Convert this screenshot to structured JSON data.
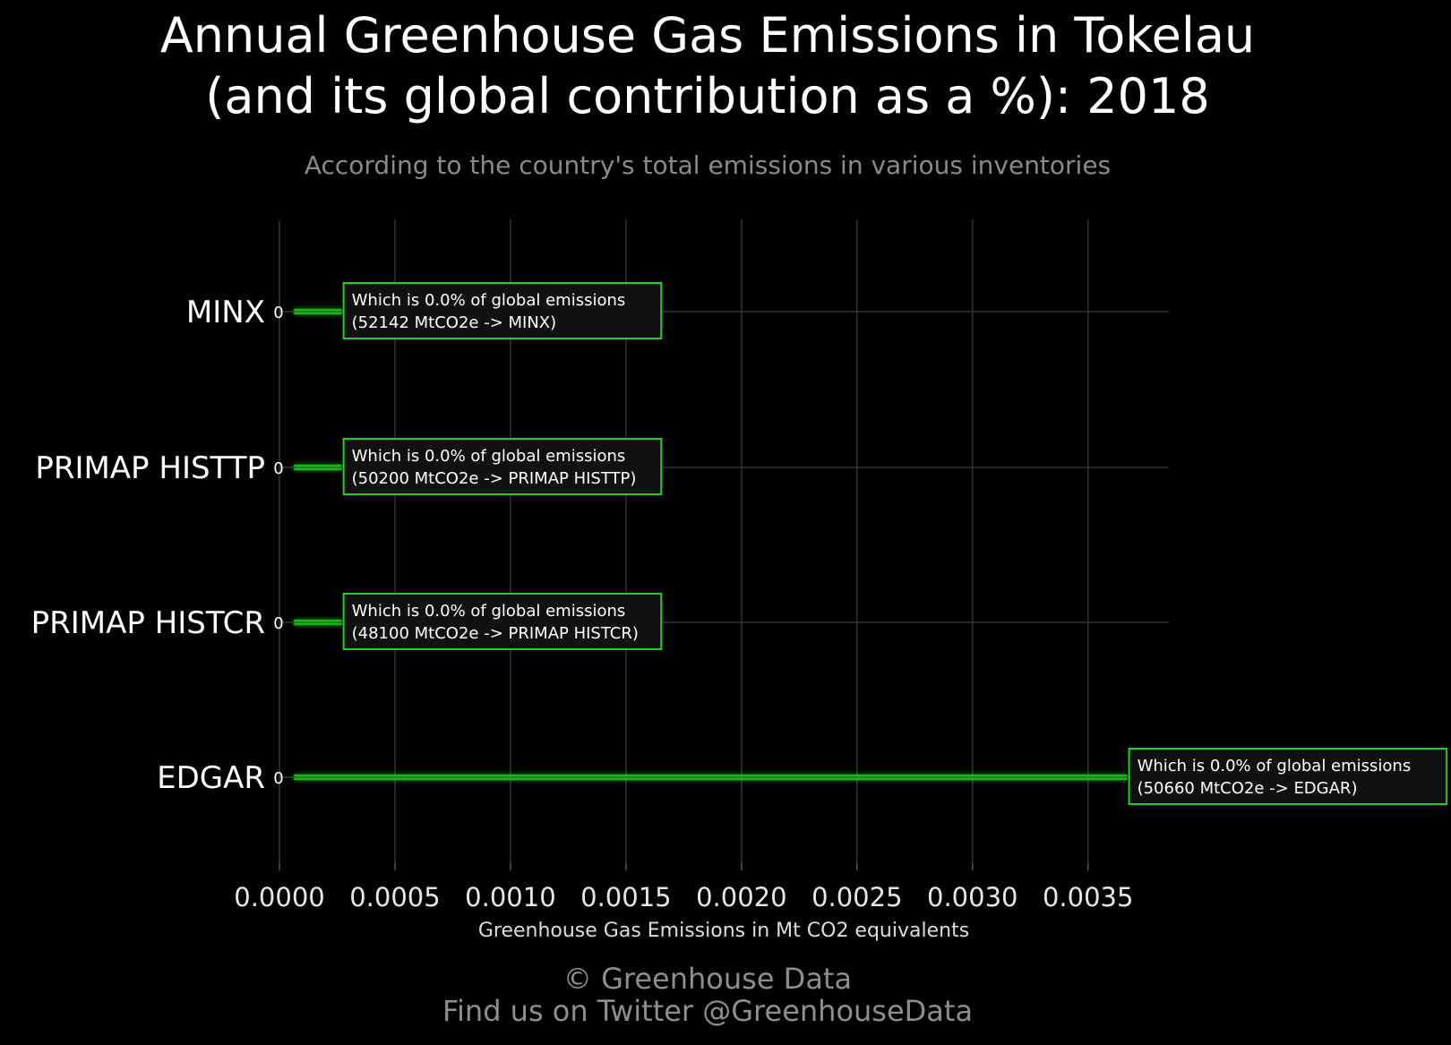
{
  "title_line1": "Annual Greenhouse Gas Emissions in Tokelau",
  "title_line2": "(and its global contribution as a %): 2018",
  "subtitle": "According to the country's total emissions in various inventories",
  "footer_line1": "© Greenhouse Data",
  "footer_line2": "Find us on Twitter @GreenhouseData",
  "colors": {
    "background": "#000000",
    "bar": "#1fd11f",
    "grid": "#333333",
    "label_box_bg": "#111111"
  },
  "chart_data": {
    "type": "bar",
    "orientation": "horizontal",
    "categories": [
      "MINX",
      "PRIMAP HISTTP",
      "PRIMAP HISTCR",
      "EDGAR"
    ],
    "values": [
      0.00027,
      0.00027,
      0.00027,
      0.00367
    ],
    "value_labels": [
      "0",
      "0",
      "0",
      "0"
    ],
    "annotations": [
      {
        "line1": "Which is 0.0% of global emissions",
        "line2": "(52142 MtCO2e -> MINX)"
      },
      {
        "line1": "Which is 0.0% of global emissions",
        "line2": "(50200 MtCO2e -> PRIMAP HISTTP)"
      },
      {
        "line1": "Which is 0.0% of global emissions",
        "line2": "(48100 MtCO2e -> PRIMAP HISTCR)"
      },
      {
        "line1": "Which is 0.0% of global emissions",
        "line2": "(50660 MtCO2e -> EDGAR)"
      }
    ],
    "xlabel": "Greenhouse Gas Emissions in Mt CO2 equivalents",
    "xticks": [
      "0.0000",
      "0.0005",
      "0.0010",
      "0.0015",
      "0.0020",
      "0.0025",
      "0.0030",
      "0.0035"
    ],
    "xlim": [
      0,
      0.00385
    ],
    "grid": true
  }
}
